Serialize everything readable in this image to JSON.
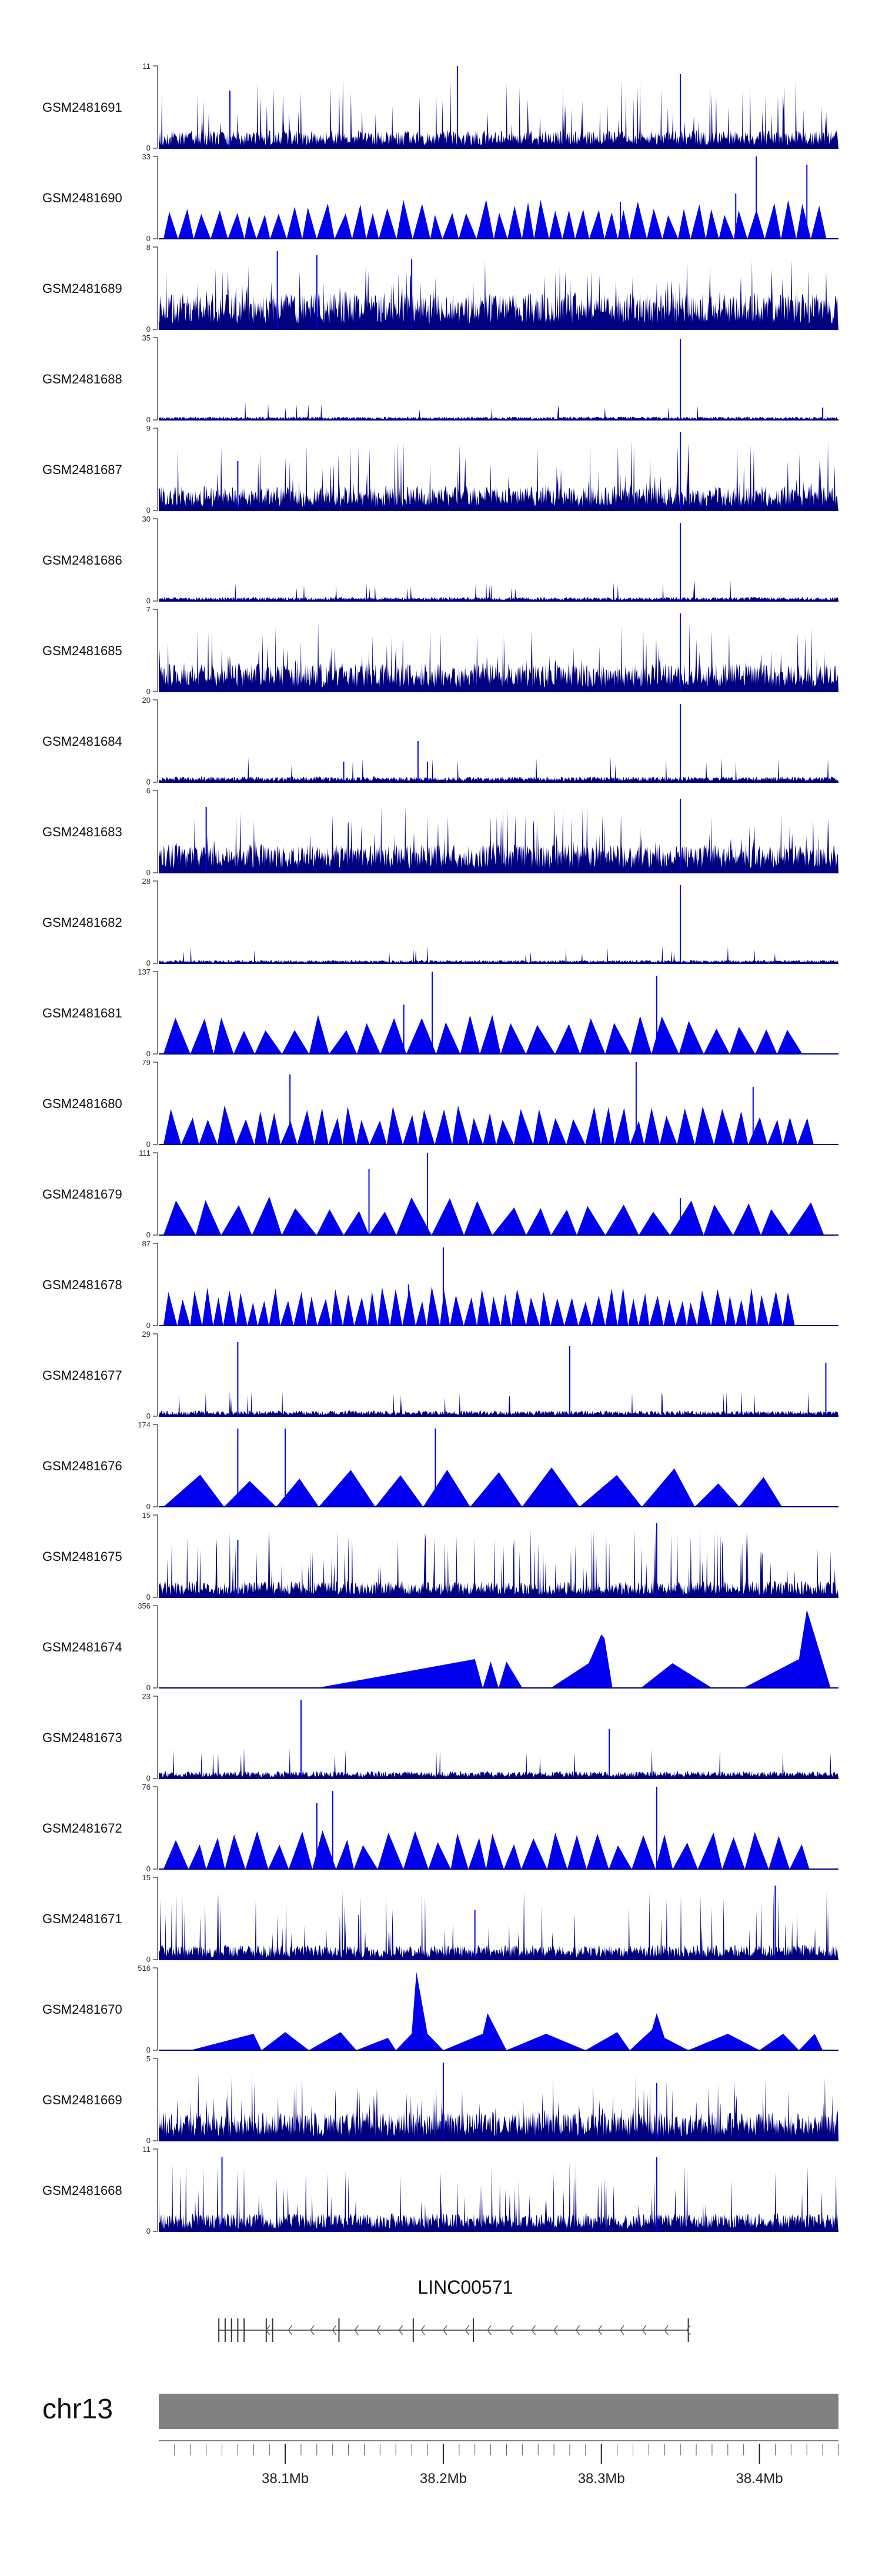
{
  "chart_data": {
    "type": "area",
    "title": "",
    "xlabel": "",
    "ylabel": "",
    "colors": {
      "fill": "#0000ee",
      "dense": "#000080",
      "axis": "#000000",
      "ideogram": "#808080",
      "gene": "#666666"
    },
    "xlim": [
      38.02,
      38.45
    ],
    "x_ticks": [
      "38.1Mb",
      "38.2Mb",
      "38.3Mb",
      "38.4Mb"
    ],
    "x_tick_values": [
      38.1,
      38.2,
      38.3,
      38.4
    ],
    "tracks": [
      {
        "name": "GSM2481691",
        "ymax": 11,
        "ymin_label": "0",
        "style": "dense",
        "seed": 11,
        "base": 0.22,
        "peaks": [
          [
            38.209,
            1.0
          ],
          [
            38.35,
            0.9
          ],
          [
            38.065,
            0.7
          ]
        ]
      },
      {
        "name": "GSM2481690",
        "ymax": 33,
        "ymin_label": "0",
        "style": "triangles",
        "seed": 12,
        "n": 44,
        "peaks": [
          [
            38.398,
            1.0
          ],
          [
            38.385,
            0.55
          ],
          [
            38.43,
            0.9
          ],
          [
            38.312,
            0.45
          ]
        ]
      },
      {
        "name": "GSM2481689",
        "ymax": 8,
        "ymin_label": "0",
        "style": "dense",
        "seed": 13,
        "base": 0.45,
        "peaks": [
          [
            38.095,
            0.95
          ],
          [
            38.12,
            0.9
          ],
          [
            38.18,
            0.85
          ]
        ]
      },
      {
        "name": "GSM2481688",
        "ymax": 35,
        "ymin_label": "0",
        "style": "sparse",
        "seed": 14,
        "base": 0.04,
        "peaks": [
          [
            38.35,
            0.98
          ],
          [
            38.44,
            0.15
          ]
        ]
      },
      {
        "name": "GSM2481687",
        "ymax": 9,
        "ymin_label": "0",
        "style": "dense",
        "seed": 15,
        "base": 0.3,
        "peaks": [
          [
            38.35,
            0.95
          ],
          [
            38.07,
            0.6
          ]
        ]
      },
      {
        "name": "GSM2481686",
        "ymax": 30,
        "ymin_label": "0",
        "style": "sparse",
        "seed": 16,
        "base": 0.05,
        "peaks": [
          [
            38.35,
            0.95
          ]
        ]
      },
      {
        "name": "GSM2481685",
        "ymax": 7,
        "ymin_label": "0",
        "style": "dense",
        "seed": 17,
        "base": 0.35,
        "peaks": [
          [
            38.35,
            0.95
          ]
        ]
      },
      {
        "name": "GSM2481684",
        "ymax": 20,
        "ymin_label": "0",
        "style": "sparse",
        "seed": 18,
        "base": 0.07,
        "peaks": [
          [
            38.35,
            0.95
          ],
          [
            38.184,
            0.5
          ],
          [
            38.19,
            0.25
          ],
          [
            38.137,
            0.25
          ]
        ]
      },
      {
        "name": "GSM2481683",
        "ymax": 6,
        "ymin_label": "0",
        "style": "dense",
        "seed": 19,
        "base": 0.35,
        "peaks": [
          [
            38.35,
            0.9
          ],
          [
            38.05,
            0.8
          ]
        ]
      },
      {
        "name": "GSM2481682",
        "ymax": 28,
        "ymin_label": "0",
        "style": "sparse",
        "seed": 20,
        "base": 0.04,
        "peaks": [
          [
            38.35,
            0.95
          ]
        ]
      },
      {
        "name": "GSM2481681",
        "ymax": 137,
        "ymin_label": "0",
        "style": "triangles",
        "seed": 21,
        "n": 26,
        "peaks": [
          [
            38.193,
            1.0
          ],
          [
            38.335,
            0.95
          ],
          [
            38.175,
            0.6
          ]
        ]
      },
      {
        "name": "GSM2481680",
        "ymax": 79,
        "ymin_label": "0",
        "style": "triangles",
        "seed": 22,
        "n": 40,
        "peaks": [
          [
            38.322,
            1.0
          ],
          [
            38.103,
            0.85
          ],
          [
            38.396,
            0.7
          ]
        ]
      },
      {
        "name": "GSM2481679",
        "ymax": 111,
        "ymin_label": "0",
        "style": "triangles",
        "seed": 23,
        "n": 22,
        "peaks": [
          [
            38.19,
            1.0
          ],
          [
            38.153,
            0.8
          ],
          [
            38.35,
            0.45
          ]
        ]
      },
      {
        "name": "GSM2481678",
        "ymax": 87,
        "ymin_label": "0",
        "style": "triangles",
        "seed": 24,
        "n": 52,
        "peaks": [
          [
            38.2,
            0.95
          ],
          [
            38.178,
            0.5
          ]
        ]
      },
      {
        "name": "GSM2481677",
        "ymax": 29,
        "ymin_label": "0",
        "style": "sparse",
        "seed": 25,
        "base": 0.07,
        "peaks": [
          [
            38.07,
            0.9
          ],
          [
            38.28,
            0.85
          ],
          [
            38.442,
            0.65
          ]
        ]
      },
      {
        "name": "GSM2481676",
        "ymax": 174,
        "ymin_label": "0",
        "style": "triangles",
        "seed": 26,
        "n": 12,
        "peaks": [
          [
            38.07,
            0.95
          ],
          [
            38.1,
            0.95
          ],
          [
            38.195,
            0.95
          ]
        ]
      },
      {
        "name": "GSM2481675",
        "ymax": 15,
        "ymin_label": "0",
        "style": "dense",
        "seed": 27,
        "base": 0.2,
        "peaks": [
          [
            38.335,
            0.9
          ],
          [
            38.07,
            0.7
          ]
        ]
      },
      {
        "name": "GSM2481674",
        "ymax": 356,
        "ymin_label": "0",
        "style": "sparsetri",
        "seed": 28,
        "anchors": [
          [
            38.12,
            0
          ],
          [
            38.22,
            0.35
          ],
          [
            38.225,
            0
          ],
          [
            38.23,
            0.32
          ],
          [
            38.235,
            0
          ],
          [
            38.24,
            0.32
          ],
          [
            38.25,
            0
          ],
          [
            38.268,
            0
          ],
          [
            38.292,
            0.3
          ],
          [
            38.3,
            0.65
          ],
          [
            38.302,
            0.6
          ],
          [
            38.307,
            0
          ],
          [
            38.325,
            0
          ],
          [
            38.345,
            0.3
          ],
          [
            38.37,
            0
          ],
          [
            38.39,
            0
          ],
          [
            38.425,
            0.35
          ],
          [
            38.43,
            0.95
          ],
          [
            38.445,
            0
          ]
        ]
      },
      {
        "name": "GSM2481673",
        "ymax": 23,
        "ymin_label": "0",
        "style": "sparse",
        "seed": 29,
        "base": 0.09,
        "peaks": [
          [
            38.11,
            0.95
          ],
          [
            38.305,
            0.6
          ]
        ]
      },
      {
        "name": "GSM2481672",
        "ymax": 76,
        "ymin_label": "0",
        "style": "triangles",
        "seed": 30,
        "n": 30,
        "peaks": [
          [
            38.335,
            1.0
          ],
          [
            38.13,
            0.95
          ],
          [
            38.12,
            0.8
          ]
        ]
      },
      {
        "name": "GSM2481671",
        "ymax": 15,
        "ymin_label": "0",
        "style": "dense",
        "seed": 31,
        "base": 0.18,
        "peaks": [
          [
            38.41,
            0.9
          ],
          [
            38.22,
            0.6
          ]
        ]
      },
      {
        "name": "GSM2481670",
        "ymax": 516,
        "ymin_label": "0",
        "style": "sparsetri",
        "seed": 32,
        "anchors": [
          [
            38.04,
            0
          ],
          [
            38.08,
            0.2
          ],
          [
            38.085,
            0
          ],
          [
            38.1,
            0.22
          ],
          [
            38.115,
            0
          ],
          [
            38.135,
            0.22
          ],
          [
            38.145,
            0
          ],
          [
            38.165,
            0.15
          ],
          [
            38.17,
            0
          ],
          [
            38.18,
            0.2
          ],
          [
            38.183,
            0.95
          ],
          [
            38.19,
            0.2
          ],
          [
            38.2,
            0
          ],
          [
            38.225,
            0.2
          ],
          [
            38.228,
            0.45
          ],
          [
            38.24,
            0
          ],
          [
            38.265,
            0.2
          ],
          [
            38.29,
            0
          ],
          [
            38.31,
            0.22
          ],
          [
            38.318,
            0.0
          ],
          [
            38.332,
            0.25
          ],
          [
            38.335,
            0.45
          ],
          [
            38.34,
            0.15
          ],
          [
            38.355,
            0
          ],
          [
            38.38,
            0.2
          ],
          [
            38.4,
            0
          ],
          [
            38.415,
            0.2
          ],
          [
            38.425,
            0
          ],
          [
            38.435,
            0.2
          ],
          [
            38.44,
            0
          ]
        ]
      },
      {
        "name": "GSM2481669",
        "ymax": 5,
        "ymin_label": "0",
        "style": "dense",
        "seed": 33,
        "base": 0.35,
        "peaks": [
          [
            38.2,
            0.95
          ],
          [
            38.335,
            0.7
          ]
        ]
      },
      {
        "name": "GSM2481668",
        "ymax": 11,
        "ymin_label": "0",
        "style": "dense",
        "seed": 34,
        "base": 0.22,
        "peaks": [
          [
            38.06,
            0.9
          ],
          [
            38.335,
            0.9
          ]
        ]
      }
    ],
    "gene": {
      "label": "LINC00571",
      "start": 38.058,
      "end": 38.355,
      "strand": "-"
    },
    "ideogram": {
      "chromosome": "chr13"
    }
  }
}
